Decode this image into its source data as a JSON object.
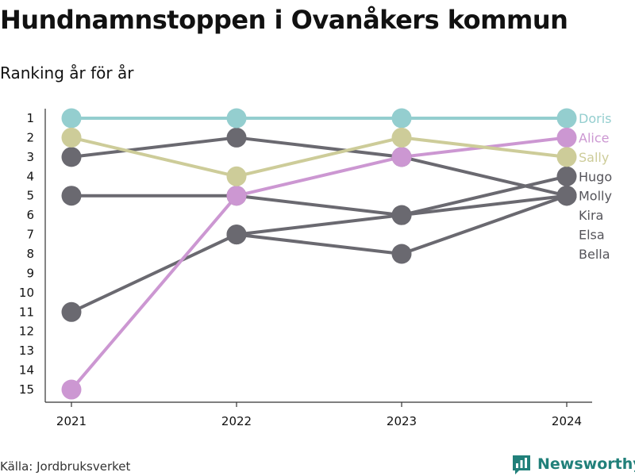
{
  "title": "Hundnamnstoppen i Ovanåkers kommun",
  "subtitle": "Ranking år för år",
  "source": "Källa: Jordbruksverket",
  "brand": {
    "name": "Newsworthy",
    "icon": "newsworthy-logo-icon",
    "color": "#21807a"
  },
  "colors": {
    "highlight_teal": "#94cecf",
    "highlight_pink": "#cc97d2",
    "highlight_olive": "#cdcc99",
    "default_gray": "#6a6970",
    "axis": "#333333"
  },
  "chart_data": {
    "type": "line",
    "subtype": "bump",
    "x": [
      "2021",
      "2022",
      "2023",
      "2024"
    ],
    "y_inverted": true,
    "ylim": [
      1,
      15
    ],
    "yticks": [
      "1",
      "2",
      "3",
      "4",
      "5",
      "6",
      "7",
      "8",
      "9",
      "10",
      "11",
      "12",
      "13",
      "14",
      "15"
    ],
    "grid": false,
    "series": [
      {
        "name": "Doris",
        "color": "#94cecf",
        "ranks": [
          1,
          1,
          1,
          1
        ]
      },
      {
        "name": "Alice",
        "color": "#cc97d2",
        "ranks": [
          15,
          5,
          3,
          2
        ]
      },
      {
        "name": "Sally",
        "color": "#cdcc99",
        "ranks": [
          2,
          4,
          2,
          3
        ]
      },
      {
        "name": "Hugo",
        "color": "#6a6970",
        "ranks": [
          11,
          7,
          6,
          4
        ]
      },
      {
        "name": "Molly",
        "color": "#6a6970",
        "ranks": [
          3,
          2,
          3,
          5
        ]
      },
      {
        "name": "Kira",
        "color": "#6a6970",
        "ranks": [
          5,
          5,
          6,
          5
        ]
      },
      {
        "name": "Elsa",
        "color": "#6a6970",
        "ranks": [
          null,
          7,
          8,
          5
        ]
      },
      {
        "name": "Bella",
        "color": "#6a6970",
        "ranks": [
          null,
          null,
          null,
          5
        ]
      }
    ]
  }
}
